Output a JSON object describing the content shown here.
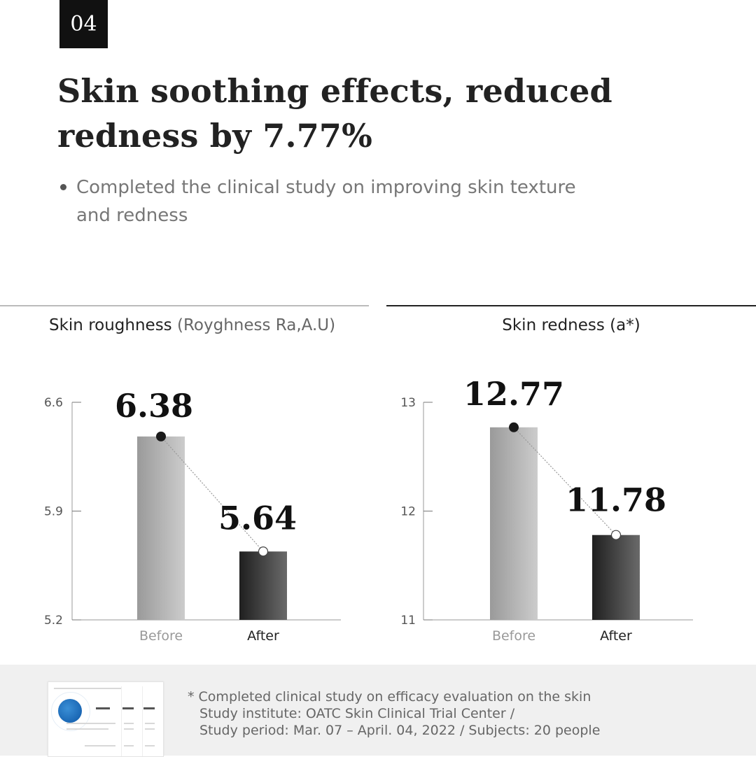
{
  "badge": "04",
  "title": {
    "line1": "Skin soothing effects, reduced",
    "line2": "redness by 7.77%"
  },
  "bullet": "Completed the clinical study on improving skin texture and redness",
  "charts": {
    "left": {
      "title": "Skin roughness ",
      "unit": "(Royghness Ra,A.U)"
    },
    "right": {
      "title": "Skin redness (a*)",
      "unit": ""
    }
  },
  "chart_data": [
    {
      "type": "bar",
      "title": "Skin roughness (Royghness Ra,A.U)",
      "categories": [
        "Before",
        "After"
      ],
      "values": [
        6.38,
        5.64
      ],
      "value_labels": [
        "6.38",
        "5.64"
      ],
      "yticks": [
        "6.6",
        "5.9",
        "5.2"
      ],
      "ylim": [
        5.2,
        6.6
      ],
      "grid": false,
      "legend": "none"
    },
    {
      "type": "bar",
      "title": "Skin redness (a*)",
      "categories": [
        "Before",
        "After"
      ],
      "values": [
        12.77,
        11.78
      ],
      "value_labels": [
        "12.77",
        "11.78"
      ],
      "yticks": [
        "13",
        "12",
        "11"
      ],
      "ylim": [
        11,
        13
      ],
      "grid": false,
      "legend": "none"
    }
  ],
  "colors": {
    "before_bar_light": "#cccccc",
    "before_bar_dark": "#9a9a9a",
    "after_bar_dark": "#1f1f1f",
    "after_bar_light": "#6a6a6a",
    "before_label": "#999999",
    "after_label": "#222222",
    "connector": "#999999"
  },
  "footnote": {
    "line1": "* Completed clinical study on efficacy evaluation on the skin",
    "line2": "Study institute: OATC Skin Clinical Trial Center /",
    "line3": "Study period: Mar. 07 – April. 04, 2022 / Subjects: 20 people"
  },
  "thumbnail": {
    "icon": "globe-icon"
  }
}
